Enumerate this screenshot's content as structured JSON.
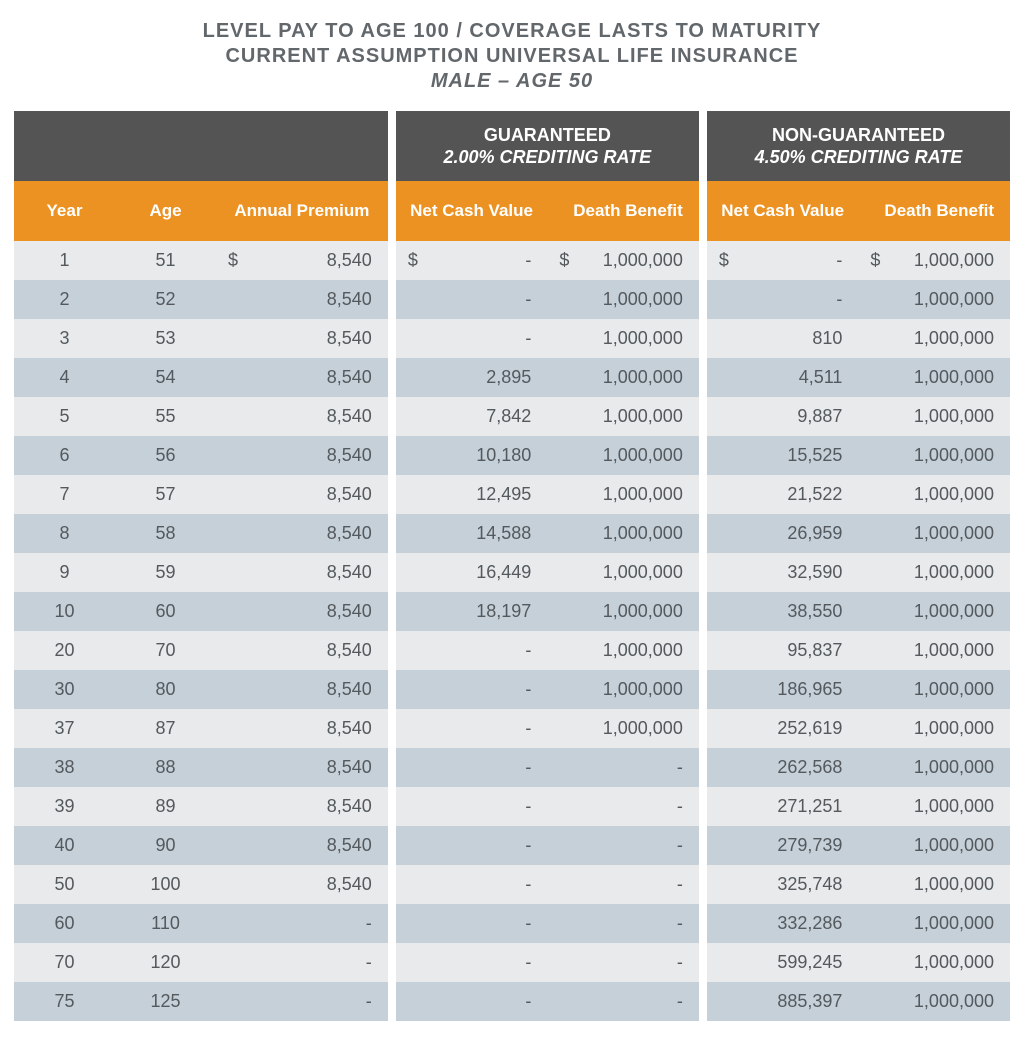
{
  "title": {
    "line1": "LEVEL PAY TO AGE 100 / COVERAGE LASTS TO MATURITY",
    "line2": "CURRENT ASSUMPTION UNIVERSAL LIFE INSURANCE",
    "line3": "MALE – AGE 50"
  },
  "group_headers": {
    "guaranteed": {
      "title": "GUARANTEED",
      "sub": "2.00% CREDITING RATE"
    },
    "nonguaranteed": {
      "title": "NON-GUARANTEED",
      "sub": "4.50% CREDITING RATE"
    }
  },
  "columns": {
    "year": "Year",
    "age": "Age",
    "premium": "Annual Premium",
    "ncv": "Net Cash Value",
    "db": "Death Benefit"
  },
  "colors": {
    "header_dark": "#545454",
    "header_orange": "#ec9223",
    "row_odd": "#e8eaec",
    "row_even": "#c5d0d9",
    "text": "#54595d",
    "title": "#62676b"
  },
  "currency_symbol": "$",
  "rows": [
    {
      "year": "1",
      "age": "51",
      "premium": "8,540",
      "g_ncv": "-",
      "g_db": "1,000,000",
      "ng_ncv": "-",
      "ng_db": "1,000,000",
      "first": true
    },
    {
      "year": "2",
      "age": "52",
      "premium": "8,540",
      "g_ncv": "-",
      "g_db": "1,000,000",
      "ng_ncv": "-",
      "ng_db": "1,000,000"
    },
    {
      "year": "3",
      "age": "53",
      "premium": "8,540",
      "g_ncv": "-",
      "g_db": "1,000,000",
      "ng_ncv": "810",
      "ng_db": "1,000,000"
    },
    {
      "year": "4",
      "age": "54",
      "premium": "8,540",
      "g_ncv": "2,895",
      "g_db": "1,000,000",
      "ng_ncv": "4,511",
      "ng_db": "1,000,000"
    },
    {
      "year": "5",
      "age": "55",
      "premium": "8,540",
      "g_ncv": "7,842",
      "g_db": "1,000,000",
      "ng_ncv": "9,887",
      "ng_db": "1,000,000"
    },
    {
      "year": "6",
      "age": "56",
      "premium": "8,540",
      "g_ncv": "10,180",
      "g_db": "1,000,000",
      "ng_ncv": "15,525",
      "ng_db": "1,000,000"
    },
    {
      "year": "7",
      "age": "57",
      "premium": "8,540",
      "g_ncv": "12,495",
      "g_db": "1,000,000",
      "ng_ncv": "21,522",
      "ng_db": "1,000,000"
    },
    {
      "year": "8",
      "age": "58",
      "premium": "8,540",
      "g_ncv": "14,588",
      "g_db": "1,000,000",
      "ng_ncv": "26,959",
      "ng_db": "1,000,000"
    },
    {
      "year": "9",
      "age": "59",
      "premium": "8,540",
      "g_ncv": "16,449",
      "g_db": "1,000,000",
      "ng_ncv": "32,590",
      "ng_db": "1,000,000"
    },
    {
      "year": "10",
      "age": "60",
      "premium": "8,540",
      "g_ncv": "18,197",
      "g_db": "1,000,000",
      "ng_ncv": "38,550",
      "ng_db": "1,000,000"
    },
    {
      "year": "20",
      "age": "70",
      "premium": "8,540",
      "g_ncv": "-",
      "g_db": "1,000,000",
      "ng_ncv": "95,837",
      "ng_db": "1,000,000"
    },
    {
      "year": "30",
      "age": "80",
      "premium": "8,540",
      "g_ncv": "-",
      "g_db": "1,000,000",
      "ng_ncv": "186,965",
      "ng_db": "1,000,000"
    },
    {
      "year": "37",
      "age": "87",
      "premium": "8,540",
      "g_ncv": "-",
      "g_db": "1,000,000",
      "ng_ncv": "252,619",
      "ng_db": "1,000,000"
    },
    {
      "year": "38",
      "age": "88",
      "premium": "8,540",
      "g_ncv": "-",
      "g_db": "-",
      "ng_ncv": "262,568",
      "ng_db": "1,000,000"
    },
    {
      "year": "39",
      "age": "89",
      "premium": "8,540",
      "g_ncv": "-",
      "g_db": "-",
      "ng_ncv": "271,251",
      "ng_db": "1,000,000"
    },
    {
      "year": "40",
      "age": "90",
      "premium": "8,540",
      "g_ncv": "-",
      "g_db": "-",
      "ng_ncv": "279,739",
      "ng_db": "1,000,000"
    },
    {
      "year": "50",
      "age": "100",
      "premium": "8,540",
      "g_ncv": "-",
      "g_db": "-",
      "ng_ncv": "325,748",
      "ng_db": "1,000,000"
    },
    {
      "year": "60",
      "age": "110",
      "premium": "-",
      "g_ncv": "-",
      "g_db": "-",
      "ng_ncv": "332,286",
      "ng_db": "1,000,000"
    },
    {
      "year": "70",
      "age": "120",
      "premium": "-",
      "g_ncv": "-",
      "g_db": "-",
      "ng_ncv": "599,245",
      "ng_db": "1,000,000"
    },
    {
      "year": "75",
      "age": "125",
      "premium": "-",
      "g_ncv": "-",
      "g_db": "-",
      "ng_ncv": "885,397",
      "ng_db": "1,000,000"
    }
  ]
}
